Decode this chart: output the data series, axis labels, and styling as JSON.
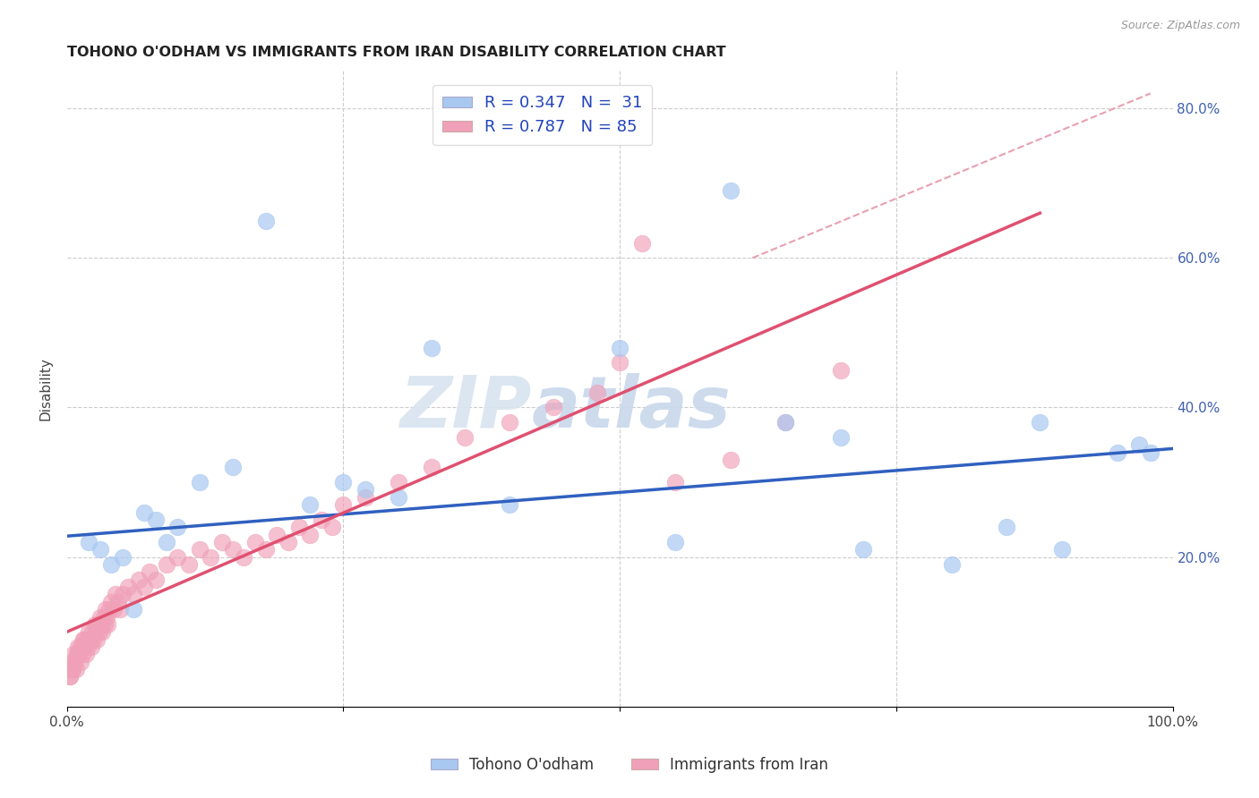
{
  "title": "TOHONO O'ODHAM VS IMMIGRANTS FROM IRAN DISABILITY CORRELATION CHART",
  "source": "Source: ZipAtlas.com",
  "ylabel": "Disability",
  "xlim": [
    0,
    1.0
  ],
  "ylim": [
    0,
    0.85
  ],
  "blue_color": "#A8C8F0",
  "pink_color": "#F0A0B8",
  "blue_line_color": "#3060C0",
  "pink_line_color": "#E05070",
  "dashed_line_color": "#E8A0B0",
  "grid_color": "#CCCCCC",
  "watermark_zip_color": "#D8E4F0",
  "watermark_atlas_color": "#C8D8EC",
  "right_tick_color": "#4060B0",
  "blue_line_x0": 0.0,
  "blue_line_y0": 0.228,
  "blue_line_x1": 1.0,
  "blue_line_y1": 0.345,
  "pink_line_x0": 0.0,
  "pink_line_y0": 0.1,
  "pink_line_x1": 0.88,
  "pink_line_y1": 0.66,
  "dash_line_x0": 0.62,
  "dash_line_y0": 0.6,
  "dash_line_x1": 0.98,
  "dash_line_y1": 0.82,
  "blue_x": [
    0.02,
    0.03,
    0.04,
    0.05,
    0.07,
    0.08,
    0.09,
    0.1,
    0.12,
    0.15,
    0.18,
    0.22,
    0.25,
    0.27,
    0.3,
    0.33,
    0.4,
    0.5,
    0.55,
    0.6,
    0.65,
    0.7,
    0.72,
    0.8,
    0.85,
    0.88,
    0.9,
    0.95,
    0.97,
    0.98,
    0.06
  ],
  "blue_y": [
    0.22,
    0.21,
    0.19,
    0.2,
    0.26,
    0.25,
    0.22,
    0.24,
    0.3,
    0.32,
    0.65,
    0.27,
    0.3,
    0.29,
    0.28,
    0.48,
    0.27,
    0.48,
    0.22,
    0.69,
    0.38,
    0.36,
    0.21,
    0.19,
    0.24,
    0.38,
    0.21,
    0.34,
    0.35,
    0.34,
    0.13
  ],
  "pink_x": [
    0.002,
    0.003,
    0.004,
    0.005,
    0.006,
    0.007,
    0.008,
    0.009,
    0.01,
    0.011,
    0.012,
    0.013,
    0.014,
    0.015,
    0.016,
    0.017,
    0.018,
    0.019,
    0.02,
    0.021,
    0.022,
    0.023,
    0.024,
    0.025,
    0.026,
    0.027,
    0.028,
    0.029,
    0.03,
    0.031,
    0.032,
    0.033,
    0.034,
    0.035,
    0.036,
    0.037,
    0.038,
    0.04,
    0.042,
    0.044,
    0.046,
    0.048,
    0.05,
    0.055,
    0.06,
    0.065,
    0.07,
    0.075,
    0.08,
    0.09,
    0.1,
    0.11,
    0.12,
    0.13,
    0.14,
    0.15,
    0.16,
    0.17,
    0.18,
    0.19,
    0.2,
    0.21,
    0.22,
    0.23,
    0.24,
    0.25,
    0.27,
    0.3,
    0.33,
    0.36,
    0.4,
    0.44,
    0.48,
    0.5,
    0.52,
    0.55,
    0.6,
    0.65,
    0.7,
    0.003,
    0.005,
    0.007,
    0.009,
    0.012,
    0.015
  ],
  "pink_y": [
    0.05,
    0.04,
    0.06,
    0.05,
    0.07,
    0.06,
    0.05,
    0.07,
    0.08,
    0.07,
    0.06,
    0.08,
    0.07,
    0.09,
    0.08,
    0.07,
    0.09,
    0.08,
    0.1,
    0.09,
    0.08,
    0.1,
    0.09,
    0.11,
    0.1,
    0.09,
    0.11,
    0.1,
    0.12,
    0.11,
    0.1,
    0.12,
    0.11,
    0.13,
    0.12,
    0.11,
    0.13,
    0.14,
    0.13,
    0.15,
    0.14,
    0.13,
    0.15,
    0.16,
    0.15,
    0.17,
    0.16,
    0.18,
    0.17,
    0.19,
    0.2,
    0.19,
    0.21,
    0.2,
    0.22,
    0.21,
    0.2,
    0.22,
    0.21,
    0.23,
    0.22,
    0.24,
    0.23,
    0.25,
    0.24,
    0.27,
    0.28,
    0.3,
    0.32,
    0.36,
    0.38,
    0.4,
    0.42,
    0.46,
    0.62,
    0.3,
    0.33,
    0.38,
    0.45,
    0.04,
    0.05,
    0.06,
    0.07,
    0.08,
    0.09
  ]
}
